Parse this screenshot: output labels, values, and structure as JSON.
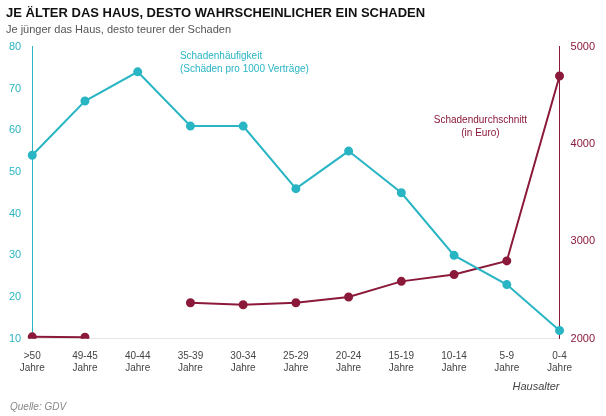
{
  "chart_data": {
    "type": "line",
    "title": "JE ÄLTER DAS HAUS, DESTO WAHRSCHEINLICHER EIN SCHADEN",
    "subtitle": "Je jünger das Haus, desto teurer der Schaden",
    "source": "Quelle: GDV",
    "xlabel": "Hausalter",
    "categories": [
      ">50\nJahre",
      "49-45\nJahre",
      "40-44\nJahre",
      "35-39\nJahre",
      "30-34\nJahre",
      "25-29\nJahre",
      "20-24\nJahre",
      "15-19\nJahre",
      "10-14\nJahre",
      "5-9\nJahre",
      "0-4\nJahre"
    ],
    "series": [
      {
        "name": "Schadenhäufigkeit\n(Schäden pro 1000 Verträge)",
        "color": "#29B5C3",
        "marker": "circle",
        "line_style": "solid",
        "values": [
          54,
          67,
          74,
          61,
          61,
          46,
          55,
          45,
          30,
          23,
          12
        ]
      },
      {
        "name": "Schadendurchschnitt\n(in Euro)",
        "color": "#8B1A3A",
        "marker": "circle",
        "line_style": "solid",
        "axis": "y2",
        "values": [
          2020,
          2016,
          null,
          2370,
          2350,
          2370,
          2430,
          2590,
          2660,
          2800,
          4700
        ]
      }
    ],
    "ylim": [
      10,
      80
    ],
    "yticks": [
      10,
      20,
      30,
      40,
      50,
      60,
      70,
      80
    ],
    "y2lim": [
      2000,
      5000
    ],
    "y2ticks": [
      2000,
      3000,
      4000,
      5000
    ],
    "grid": false
  }
}
